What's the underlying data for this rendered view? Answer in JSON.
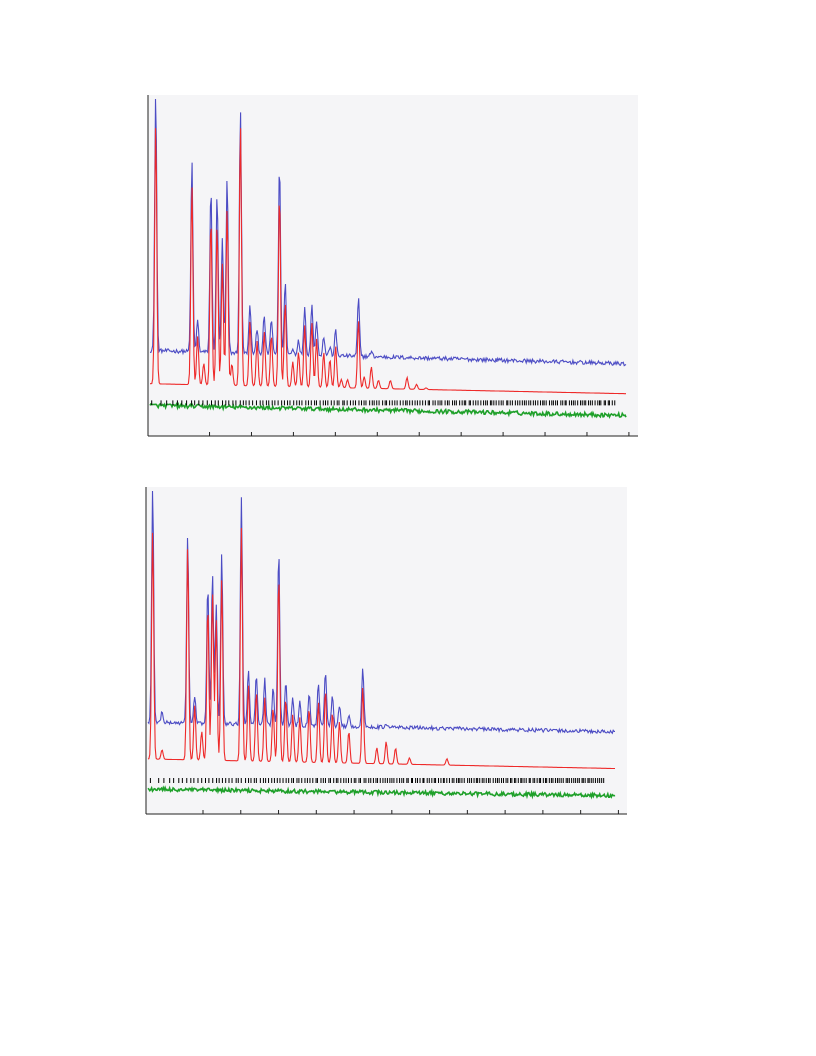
{
  "colors": {
    "observed": "#4c4cc4",
    "calculated": "#ee2a2a",
    "difference": "#1fa02a",
    "reflections": "#000000",
    "axis": "#222222",
    "panel_background": "#f5f5f7"
  },
  "chart_data": [
    {
      "type": "line",
      "title": "",
      "xlabel": "",
      "ylabel": "",
      "x_tick_count": 11,
      "x_range": [
        0,
        1
      ],
      "y_range": [
        0,
        1
      ],
      "grid": false,
      "legend": "none",
      "series": [
        {
          "role": "observed",
          "baseline": 0.205,
          "background_slope": 0.04,
          "peaks": [
            [
              0.012,
              0.99
            ],
            [
              0.034,
              0.1
            ],
            [
              0.088,
              0.78
            ],
            [
              0.1,
              0.3
            ],
            [
              0.113,
              0.2
            ],
            [
              0.128,
              0.7
            ],
            [
              0.141,
              0.68
            ],
            [
              0.152,
              0.55
            ],
            [
              0.162,
              0.73
            ],
            [
              0.172,
              0.2
            ],
            [
              0.19,
              0.94
            ],
            [
              0.21,
              0.35
            ],
            [
              0.225,
              0.28
            ],
            [
              0.24,
              0.32
            ],
            [
              0.255,
              0.31
            ],
            [
              0.272,
              0.78
            ],
            [
              0.284,
              0.42
            ],
            [
              0.3,
              0.22
            ],
            [
              0.312,
              0.25
            ],
            [
              0.325,
              0.35
            ],
            [
              0.34,
              0.36
            ],
            [
              0.35,
              0.31
            ],
            [
              0.365,
              0.26
            ],
            [
              0.378,
              0.23
            ],
            [
              0.39,
              0.28
            ],
            [
              0.402,
              0.17
            ],
            [
              0.415,
              0.17
            ],
            [
              0.438,
              0.38
            ],
            [
              0.45,
              0.18
            ],
            [
              0.465,
              0.22
            ],
            [
              0.48,
              0.17
            ],
            [
              0.505,
              0.18
            ],
            [
              0.52,
              0.14
            ],
            [
              0.54,
              0.19
            ],
            [
              0.56,
              0.16
            ],
            [
              0.58,
              0.15
            ],
            [
              0.6,
              0.12
            ],
            [
              0.62,
              0.14
            ],
            [
              0.64,
              0.12
            ],
            [
              0.66,
              0.12
            ],
            [
              0.7,
              0.1
            ],
            [
              0.725,
              0.09
            ],
            [
              0.76,
              0.1
            ],
            [
              0.8,
              0.07
            ],
            [
              0.86,
              0.07
            ],
            [
              0.9,
              0.05
            ],
            [
              0.95,
              0.04
            ]
          ]
        },
        {
          "role": "calculated",
          "baseline": 0.115,
          "background_slope": 0.03,
          "peaks": [
            [
              0.012,
              0.9
            ],
            [
              0.034,
              0.08
            ],
            [
              0.088,
              0.72
            ],
            [
              0.1,
              0.26
            ],
            [
              0.113,
              0.18
            ],
            [
              0.128,
              0.62
            ],
            [
              0.141,
              0.6
            ],
            [
              0.152,
              0.48
            ],
            [
              0.162,
              0.65
            ],
            [
              0.172,
              0.18
            ],
            [
              0.19,
              0.9
            ],
            [
              0.21,
              0.31
            ],
            [
              0.225,
              0.25
            ],
            [
              0.24,
              0.28
            ],
            [
              0.255,
              0.27
            ],
            [
              0.272,
              0.7
            ],
            [
              0.284,
              0.37
            ],
            [
              0.3,
              0.19
            ],
            [
              0.312,
              0.22
            ],
            [
              0.325,
              0.3
            ],
            [
              0.34,
              0.31
            ],
            [
              0.35,
              0.26
            ],
            [
              0.365,
              0.22
            ],
            [
              0.378,
              0.2
            ],
            [
              0.39,
              0.24
            ],
            [
              0.402,
              0.14
            ],
            [
              0.415,
              0.14
            ],
            [
              0.438,
              0.32
            ],
            [
              0.45,
              0.15
            ],
            [
              0.465,
              0.18
            ],
            [
              0.48,
              0.14
            ],
            [
              0.505,
              0.14
            ],
            [
              0.52,
              0.11
            ],
            [
              0.54,
              0.15
            ],
            [
              0.56,
              0.13
            ],
            [
              0.58,
              0.12
            ],
            [
              0.6,
              0.1
            ],
            [
              0.62,
              0.11
            ],
            [
              0.64,
              0.1
            ],
            [
              0.66,
              0.1
            ],
            [
              0.7,
              0.08
            ],
            [
              0.725,
              0.07
            ],
            [
              0.76,
              0.08
            ],
            [
              0.8,
              0.05
            ],
            [
              0.86,
              0.05
            ],
            [
              0.9,
              0.04
            ],
            [
              0.95,
              0.03
            ]
          ]
        },
        {
          "role": "difference",
          "baseline": 0.05,
          "background_slope": 0.03,
          "peaks": []
        }
      ],
      "reflection_count": 170
    },
    {
      "type": "line",
      "title": "",
      "xlabel": "",
      "ylabel": "",
      "x_tick_count": 12,
      "x_range": [
        0,
        1
      ],
      "y_range": [
        0,
        1
      ],
      "grid": false,
      "legend": "none",
      "series": [
        {
          "role": "observed",
          "baseline": 0.245,
          "background_slope": 0.03,
          "peaks": [
            [
              0.01,
              0.99
            ],
            [
              0.03,
              0.28
            ],
            [
              0.085,
              0.84
            ],
            [
              0.1,
              0.33
            ],
            [
              0.115,
              0.24
            ],
            [
              0.128,
              0.68
            ],
            [
              0.138,
              0.72
            ],
            [
              0.146,
              0.62
            ],
            [
              0.158,
              0.78
            ],
            [
              0.2,
              0.96
            ],
            [
              0.215,
              0.42
            ],
            [
              0.232,
              0.4
            ],
            [
              0.25,
              0.39
            ],
            [
              0.268,
              0.36
            ],
            [
              0.28,
              0.8
            ],
            [
              0.295,
              0.38
            ],
            [
              0.31,
              0.33
            ],
            [
              0.325,
              0.32
            ],
            [
              0.345,
              0.35
            ],
            [
              0.365,
              0.38
            ],
            [
              0.38,
              0.42
            ],
            [
              0.395,
              0.34
            ],
            [
              0.41,
              0.31
            ],
            [
              0.43,
              0.28
            ],
            [
              0.46,
              0.43
            ],
            [
              0.49,
              0.22
            ],
            [
              0.51,
              0.25
            ],
            [
              0.53,
              0.22
            ],
            [
              0.56,
              0.18
            ],
            [
              0.6,
              0.16
            ],
            [
              0.64,
              0.18
            ],
            [
              0.68,
              0.16
            ],
            [
              0.72,
              0.14
            ],
            [
              0.76,
              0.12
            ],
            [
              0.8,
              0.1
            ],
            [
              0.86,
              0.14
            ],
            [
              0.92,
              0.08
            ],
            [
              0.96,
              0.06
            ]
          ]
        },
        {
          "role": "calculated",
          "baseline": 0.13,
          "background_slope": 0.03,
          "peaks": [
            [
              0.01,
              0.85
            ],
            [
              0.03,
              0.16
            ],
            [
              0.085,
              0.8
            ],
            [
              0.1,
              0.3
            ],
            [
              0.115,
              0.22
            ],
            [
              0.128,
              0.62
            ],
            [
              0.138,
              0.66
            ],
            [
              0.146,
              0.57
            ],
            [
              0.158,
              0.7
            ],
            [
              0.2,
              0.86
            ],
            [
              0.215,
              0.37
            ],
            [
              0.232,
              0.35
            ],
            [
              0.25,
              0.33
            ],
            [
              0.268,
              0.3
            ],
            [
              0.28,
              0.72
            ],
            [
              0.295,
              0.33
            ],
            [
              0.31,
              0.28
            ],
            [
              0.325,
              0.27
            ],
            [
              0.345,
              0.3
            ],
            [
              0.365,
              0.32
            ],
            [
              0.38,
              0.36
            ],
            [
              0.395,
              0.29
            ],
            [
              0.41,
              0.26
            ],
            [
              0.43,
              0.23
            ],
            [
              0.46,
              0.37
            ],
            [
              0.49,
              0.18
            ],
            [
              0.51,
              0.2
            ],
            [
              0.53,
              0.18
            ],
            [
              0.56,
              0.15
            ],
            [
              0.6,
              0.13
            ],
            [
              0.64,
              0.15
            ],
            [
              0.68,
              0.13
            ],
            [
              0.72,
              0.11
            ],
            [
              0.76,
              0.1
            ],
            [
              0.8,
              0.08
            ],
            [
              0.86,
              0.11
            ],
            [
              0.92,
              0.06
            ],
            [
              0.96,
              0.05
            ]
          ]
        },
        {
          "role": "difference",
          "baseline": 0.045,
          "background_slope": 0.02,
          "peaks": []
        }
      ],
      "reflection_count": 180
    }
  ]
}
